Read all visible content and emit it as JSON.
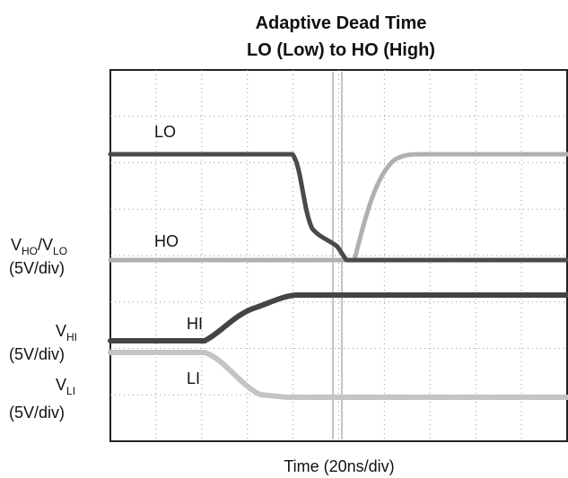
{
  "title": [
    "Adaptive Dead Time",
    "LO (Low) to HO (High)"
  ],
  "traces": [
    "LO",
    "HO",
    "HI",
    "LI"
  ],
  "left_labels": [
    {
      "v": "V",
      "sub": "HO",
      "slash": "/V",
      "sub2": "LO",
      "scale": "(5V/div)"
    },
    {
      "v": "V",
      "sub": "HI",
      "scale": "(5V/div)"
    },
    {
      "v": "V",
      "sub": "LI",
      "scale": "(5V/div)"
    }
  ],
  "x_label": "Time (20ns/div)"
}
